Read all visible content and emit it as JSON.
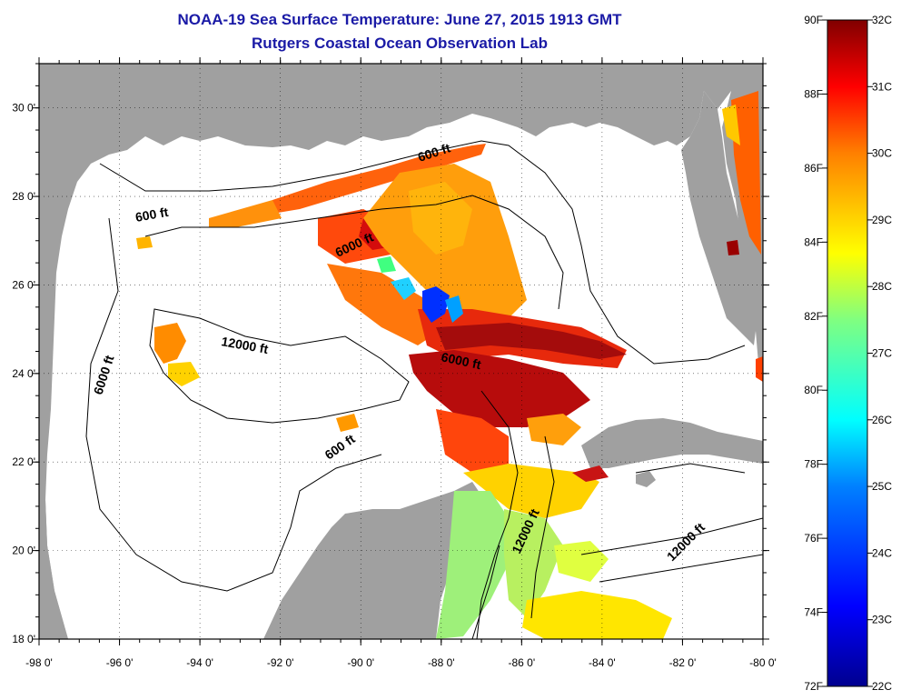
{
  "header": {
    "title_line1": "NOAA-19 Sea Surface Temperature:  June 27, 2015 1913 GMT",
    "title_line2": "Rutgers Coastal Ocean Observation Lab"
  },
  "map": {
    "lon_min": -98,
    "lon_max": -80,
    "lat_min": 18,
    "lat_max": 31,
    "lon_ticks": [
      "-98 0'",
      "-96 0'",
      "-94 0'",
      "-92 0'",
      "-90 0'",
      "-88 0'",
      "-86 0'",
      "-84 0'",
      "-82 0'",
      "-80 0'"
    ],
    "lat_ticks": [
      "18 0'",
      "20 0'",
      "22 0'",
      "24 0'",
      "26 0'",
      "28 0'",
      "30 0'"
    ],
    "contour_labels": [
      {
        "text": "600 ft"
      },
      {
        "text": "600 ft"
      },
      {
        "text": "600 ft"
      },
      {
        "text": "6000 ft"
      },
      {
        "text": "6000 ft"
      },
      {
        "text": "6000 ft"
      },
      {
        "text": "12000 ft"
      },
      {
        "text": "12000 ft"
      },
      {
        "text": "12000 ft"
      }
    ],
    "colors": {
      "land": "#a0a0a0",
      "water": "#ffffff"
    }
  },
  "colorbar": {
    "f_labels": [
      "90F",
      "88F",
      "86F",
      "84F",
      "82F",
      "80F",
      "78F",
      "76F",
      "74F",
      "72F"
    ],
    "c_labels": [
      "32C",
      "31C",
      "30C",
      "29C",
      "28C",
      "27C",
      "26C",
      "25C",
      "24C",
      "23C",
      "22C"
    ],
    "colors": [
      "#00008f",
      "#0000ff",
      "#0080ff",
      "#00ffff",
      "#80ff80",
      "#ffff00",
      "#ff8000",
      "#ff0000",
      "#800000"
    ]
  }
}
